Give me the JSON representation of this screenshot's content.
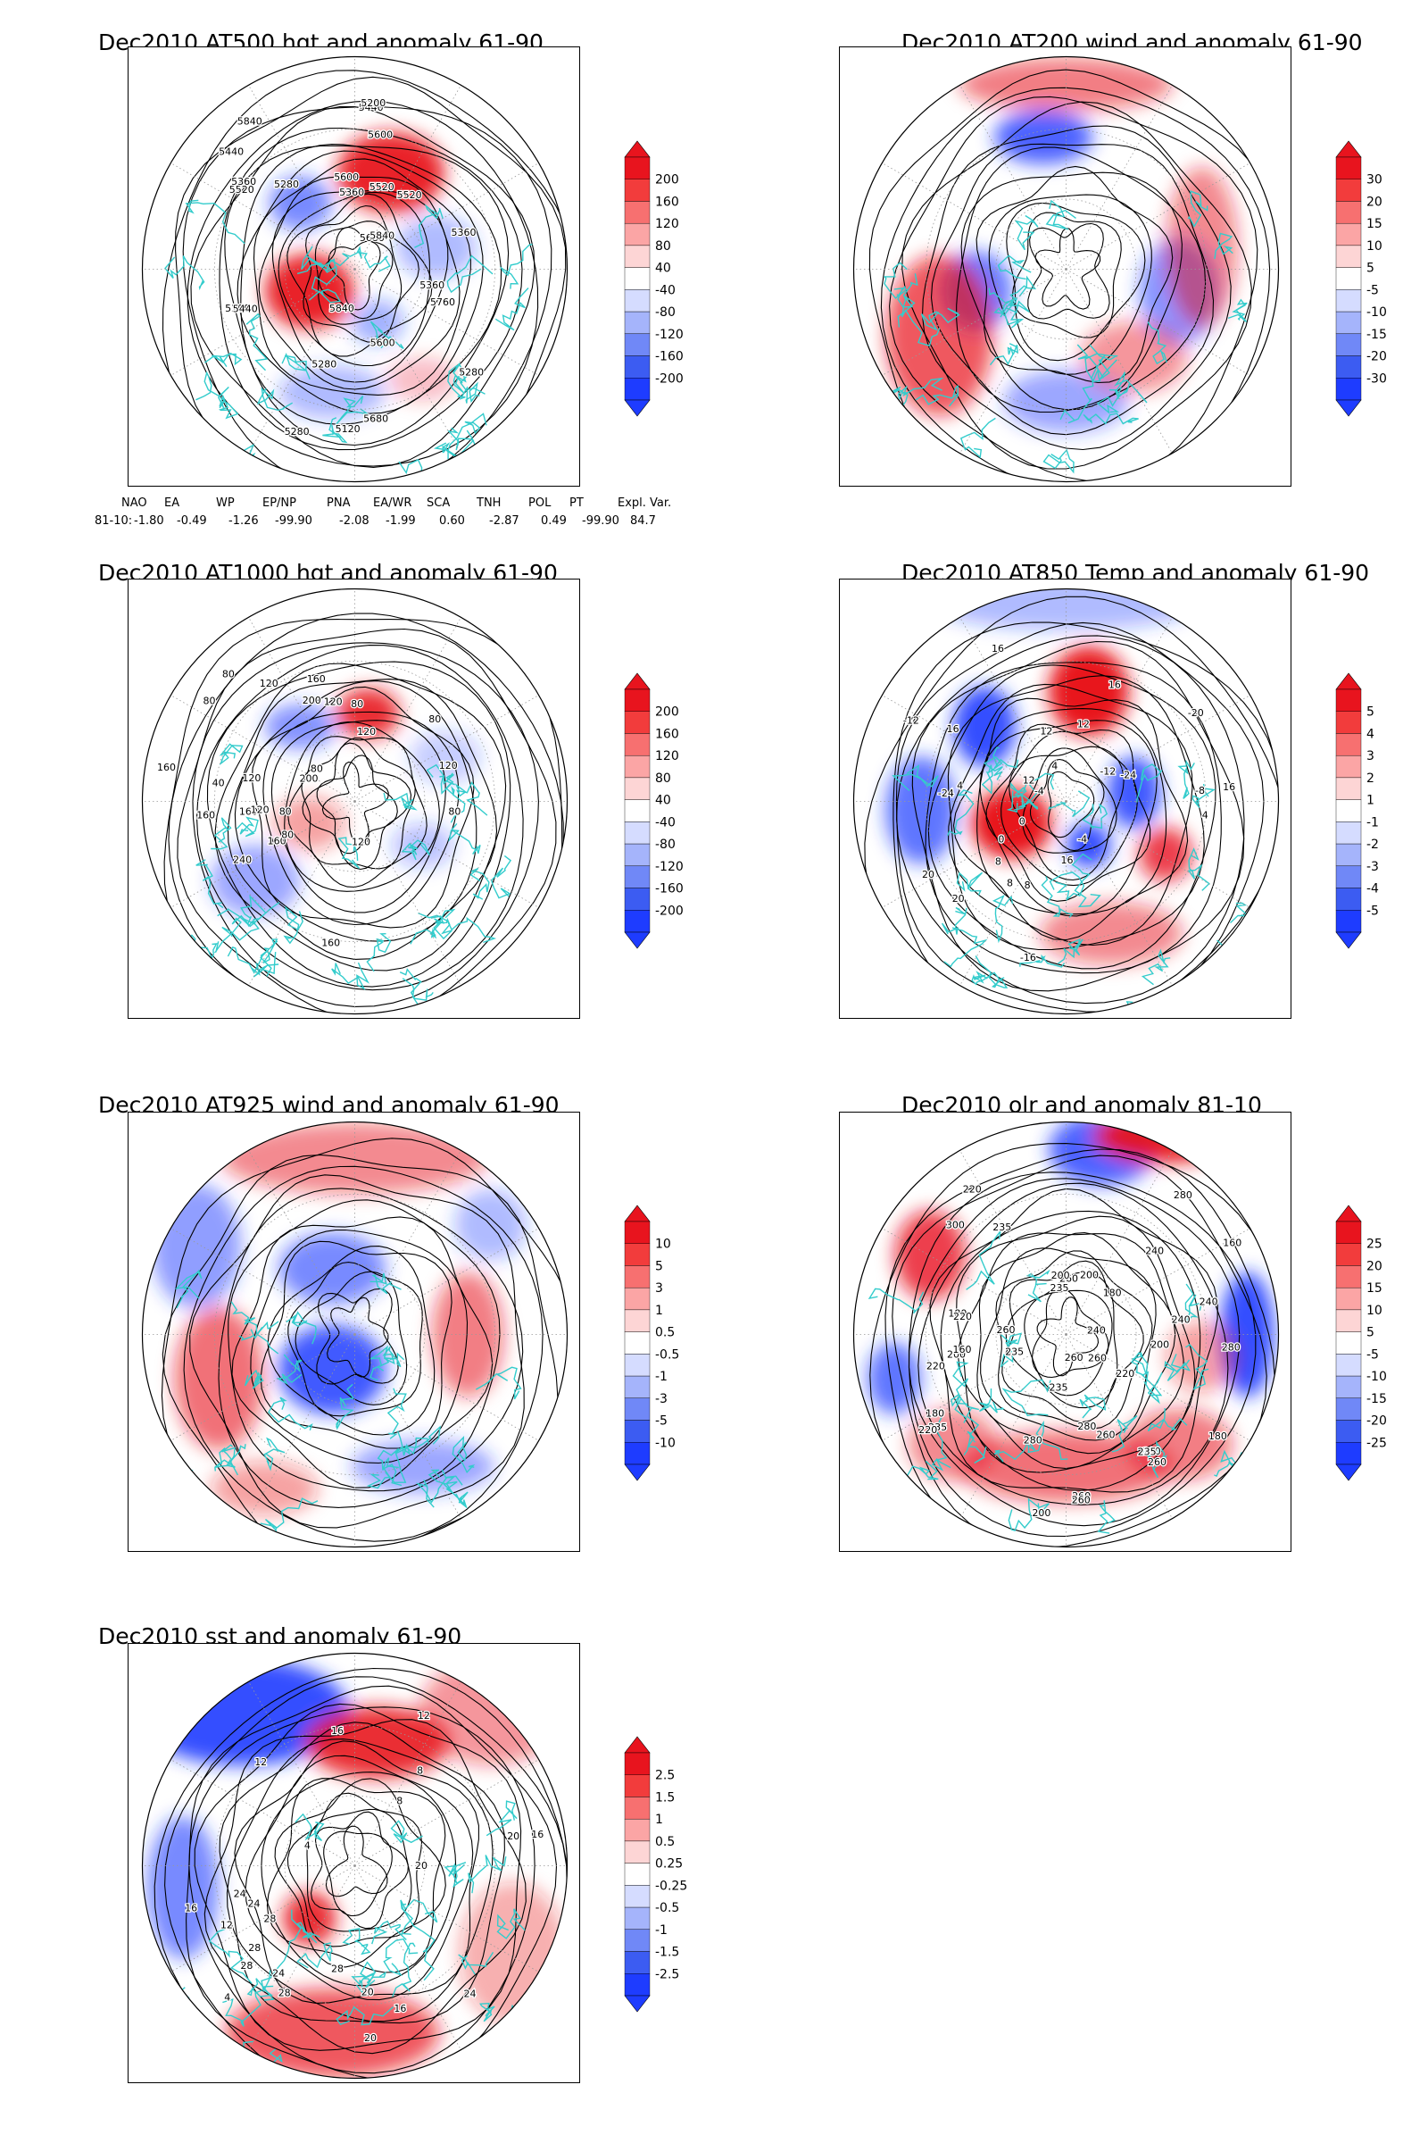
{
  "panels": [
    {
      "id": "at500",
      "title": "Dec2010 AT500 hgt and anomaly 61-90",
      "colorbar": [
        "200",
        "160",
        "120",
        "80",
        "40",
        "-40",
        "-80",
        "-120",
        "-160",
        "-200"
      ],
      "contour_labels": [
        "5840",
        "5840",
        "5680",
        "5600",
        "5520",
        "5440",
        "5360",
        "5280",
        "5200",
        "5120",
        "5280",
        "5360",
        "5440",
        "5520",
        "5600",
        "5680",
        "5760",
        "5840",
        "5600",
        "5520",
        "5440",
        "5360",
        "5280",
        "5200",
        "5280",
        "5360"
      ]
    },
    {
      "id": "at200",
      "title": "Dec2010 AT200 wind and anomaly 61-90",
      "colorbar": [
        "30",
        "20",
        "15",
        "10",
        "5",
        "-5",
        "-10",
        "-15",
        "-20",
        "-30"
      ],
      "contour_labels": []
    },
    {
      "id": "at1000",
      "title": "Dec2010 AT1000 hgt and anomaly 61-90",
      "colorbar": [
        "200",
        "160",
        "120",
        "80",
        "40",
        "-40",
        "-80",
        "-120",
        "-160",
        "-200"
      ],
      "contour_labels": [
        "80",
        "80",
        "120",
        "160",
        "120",
        "160",
        "120",
        "160",
        "160",
        "120",
        "200",
        "200",
        "240",
        "160",
        "80",
        "120",
        "160",
        "40",
        "80",
        "80",
        "80",
        "120",
        "80",
        "120",
        "80"
      ]
    },
    {
      "id": "at850",
      "title": "Dec2010 AT850 Temp and anomaly 61-90",
      "colorbar": [
        "5",
        "4",
        "3",
        "2",
        "1",
        "-1",
        "-2",
        "-3",
        "-4",
        "-5"
      ],
      "contour_labels": [
        "16",
        "12",
        "16",
        "8",
        "4",
        "0",
        "-4",
        "-12",
        "-20",
        "-24",
        "-16",
        "-24",
        "-12",
        "-8",
        "-4",
        "0",
        "4",
        "8",
        "16",
        "12",
        "16",
        "20",
        "20",
        "16",
        "12",
        "8",
        "4"
      ]
    },
    {
      "id": "at925",
      "title": "Dec2010 AT925 wind and anomaly 61-90",
      "colorbar": [
        "10",
        "5",
        "3",
        "1",
        "0.5",
        "-0.5",
        "-1",
        "-3",
        "-5",
        "-10"
      ],
      "contour_labels": []
    },
    {
      "id": "olr",
      "title": "Dec2010 olr and anomaly 81-10",
      "colorbar": [
        "25",
        "20",
        "15",
        "10",
        "5",
        "-5",
        "-10",
        "-15",
        "-20",
        "-25"
      ],
      "contour_labels": [
        "280",
        "260",
        "240",
        "235",
        "235",
        "200",
        "280",
        "260",
        "240",
        "220",
        "200",
        "180",
        "180",
        "160",
        "180",
        "200",
        "220",
        "240",
        "260",
        "235",
        "260",
        "280",
        "220",
        "200",
        "180",
        "160",
        "200",
        "220",
        "235",
        "260",
        "300",
        "260",
        "235",
        "235",
        "260",
        "240",
        "220",
        "180",
        "260",
        "280"
      ]
    },
    {
      "id": "sst",
      "title": "Dec2010 sst and anomaly 61-90",
      "colorbar": [
        "2.5",
        "1.5",
        "1",
        "0.5",
        "0.25",
        "-0.25",
        "-0.5",
        "-1",
        "-1.5",
        "-2.5"
      ],
      "contour_labels": [
        "28",
        "28",
        "24",
        "24",
        "20",
        "16",
        "12",
        "8",
        "4",
        "12",
        "16",
        "20",
        "28",
        "28",
        "24",
        "20",
        "16",
        "12",
        "8",
        "4",
        "16",
        "20",
        "24",
        "28"
      ]
    }
  ],
  "indices": {
    "header": [
      "NAO",
      "EA",
      "WP",
      "EP/NP",
      "PNA",
      "EA/WR",
      "SCA",
      "TNH",
      "POL",
      "PT",
      "Expl. Var."
    ],
    "row_label": "81-10:",
    "values": [
      "-1.80",
      "-0.49",
      "-1.26",
      "-99.90",
      "-2.08",
      "-1.99",
      "0.60",
      "-2.87",
      "0.49",
      "-99.90",
      "84.7"
    ]
  },
  "colors": {
    "positive": "#e8141e",
    "negative": "#1e3cff",
    "coast": "#33cccc",
    "contour": "#000000"
  }
}
